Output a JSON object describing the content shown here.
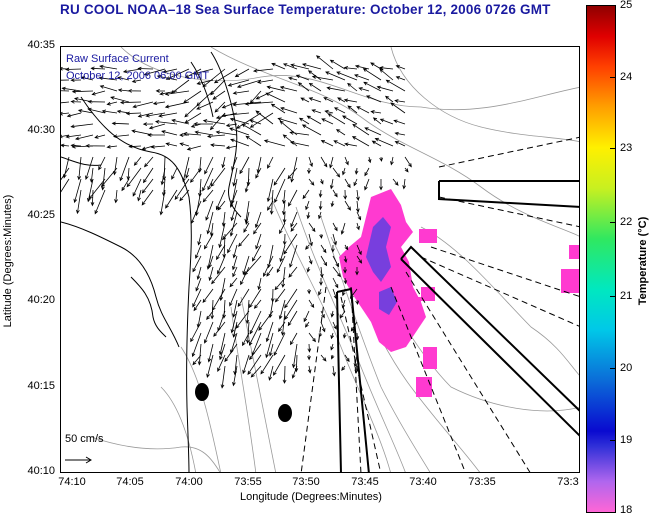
{
  "title": "RU COOL  NOAA–18  Sea Surface Temperature:  October 12, 2006 0726 GMT",
  "legend": {
    "line1": "Raw Surface Current",
    "line2": "October 12, 2006 06:00 GMT"
  },
  "scale_label": "50 cm/s",
  "axes": {
    "xlabel": "Longitude (Degrees:Minutes)",
    "ylabel": "Latitude (Degrees:Minutes)",
    "xticks": [
      "74:10",
      "74:05",
      "74:00",
      "73:55",
      "73:50",
      "73:45",
      "73:40",
      "73:35",
      "73:3"
    ],
    "yticks": [
      "40:35",
      "40:30",
      "40:25",
      "40:20",
      "40:15",
      "40:10"
    ]
  },
  "colorbar": {
    "label": "Temperature (°C)",
    "ticks": [
      "25",
      "24",
      "23",
      "22",
      "21",
      "20",
      "19",
      "18"
    ],
    "range": [
      18,
      25
    ]
  },
  "colors": {
    "title": "#1a1aa0",
    "sst_patch": "#ff3ad0",
    "sst_cool": "#6040e0"
  }
}
